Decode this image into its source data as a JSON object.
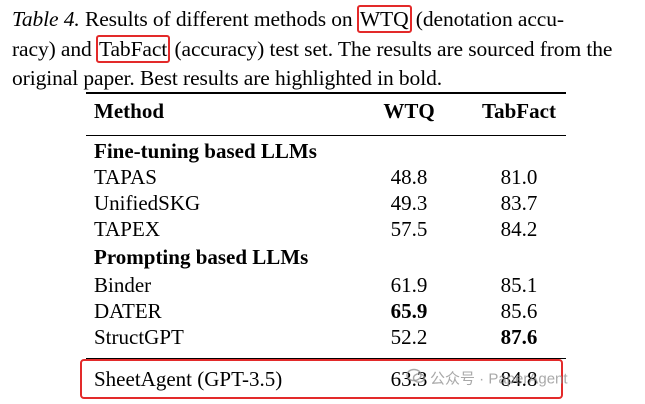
{
  "caption": {
    "label": "Table 4.",
    "text_before": " Results of different methods on ",
    "highlight1": "WTQ",
    "text_middle": " (denotation accu-­racy) and ",
    "text_middle_a": " (denotation accu-",
    "text_middle_b": "racy) and ",
    "highlight2": "TabFact",
    "text_after": " (accuracy) test set. The results are sourced from the original paper. Best results are highlighted in bold."
  },
  "table": {
    "headers": {
      "method": "Method",
      "wtq": "WTQ",
      "tabfact": "TabFact"
    },
    "sections": [
      {
        "title": "Fine-tuning based LLMs",
        "rows": [
          {
            "method": "TAPAS",
            "wtq": "48.8",
            "tabfact": "81.0"
          },
          {
            "method": "UnifiedSKG",
            "wtq": "49.3",
            "tabfact": "83.7"
          },
          {
            "method": "TAPEX",
            "wtq": "57.5",
            "tabfact": "84.2"
          }
        ]
      },
      {
        "title": "Prompting based LLMs",
        "rows": [
          {
            "method": "Binder",
            "wtq": "61.9",
            "tabfact": "85.1"
          },
          {
            "method": "DATER",
            "wtq": "65.9",
            "tabfact": "85.6",
            "best": "wtq"
          },
          {
            "method": "StructGPT",
            "wtq": "52.2",
            "tabfact": "87.6",
            "best": "tabfact"
          }
        ]
      }
    ],
    "final_row": {
      "method": "SheetAgent (GPT-3.5)",
      "wtq": "63.3",
      "tabfact": "84.8"
    }
  },
  "watermark": {
    "text": "公众号 · PaperAgent"
  },
  "colors": {
    "highlight_box": "#e32a2a"
  }
}
